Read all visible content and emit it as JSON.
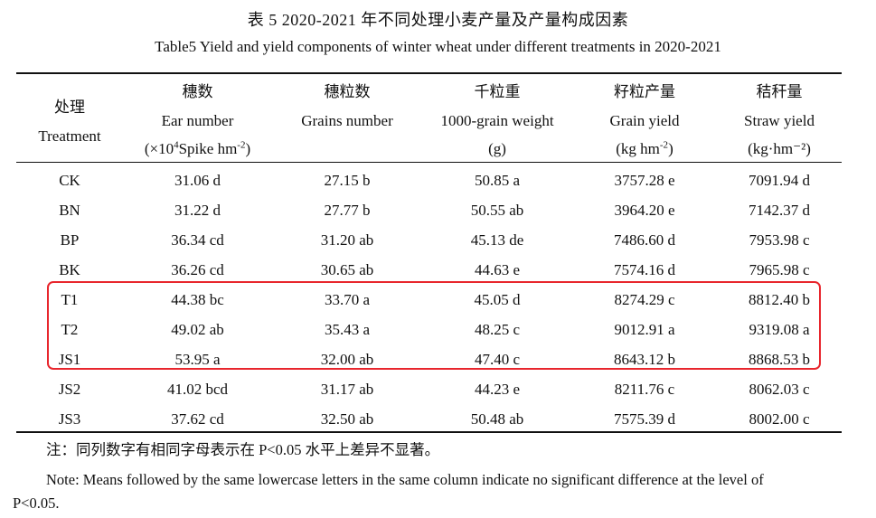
{
  "caption": {
    "cn": "表 5 2020-2021 年不同处理小麦产量及产量构成因素",
    "en": "Table5 Yield and yield components of winter wheat under different treatments in 2020-2021"
  },
  "table": {
    "headers": [
      {
        "cn": "处理",
        "en": "Treatment",
        "unit": ""
      },
      {
        "cn": "穗数",
        "en": "Ear number",
        "unit_pre": "(×10",
        "unit_sup1": "4",
        "unit_mid": "Spike hm",
        "unit_sup2": "-2",
        "unit_post": ")"
      },
      {
        "cn": "穗粒数",
        "en": "Grains number",
        "unit": ""
      },
      {
        "cn": "千粒重",
        "en": "1000-grain weight",
        "unit": "(g)"
      },
      {
        "cn": "籽粒产量",
        "en": "Grain yield",
        "unit_pre": "(kg hm",
        "unit_sup": "-2",
        "unit_post": ")"
      },
      {
        "cn": "秸秆量",
        "en": "Straw yield",
        "unit": "(kg·hm⁻²)"
      }
    ],
    "rows": [
      [
        "CK",
        "31.06 d",
        "27.15 b",
        "50.85 a",
        "3757.28 e",
        "7091.94 d"
      ],
      [
        "BN",
        "31.22 d",
        "27.77 b",
        "50.55 ab",
        "3964.20 e",
        "7142.37 d"
      ],
      [
        "BP",
        "36.34 cd",
        "31.20 ab",
        "45.13 de",
        "7486.60 d",
        "7953.98 c"
      ],
      [
        "BK",
        "36.26 cd",
        "30.65 ab",
        "44.63 e",
        "7574.16 d",
        "7965.98 c"
      ],
      [
        "T1",
        "44.38 bc",
        "33.70 a",
        "45.05 d",
        "8274.29 c",
        "8812.40 b"
      ],
      [
        "T2",
        "49.02 ab",
        "35.43 a",
        "48.25 c",
        "9012.91 a",
        "9319.08 a"
      ],
      [
        "JS1",
        "53.95 a",
        "32.00 ab",
        "47.40 c",
        "8643.12 b",
        "8868.53 b"
      ],
      [
        "JS2",
        "41.02 bcd",
        "31.17 ab",
        "44.23 e",
        "8211.76 c",
        "8062.03 c"
      ],
      [
        "JS3",
        "37.62 cd",
        "32.50 ab",
        "50.48 ab",
        "7575.39 d",
        "8002.00 c"
      ]
    ]
  },
  "highlight": {
    "color": "#e8262d",
    "rows": [
      "T1",
      "T2",
      "JS1"
    ]
  },
  "notes": {
    "cn": "注：同列数字有相同字母表示在 P<0.05 水平上差异不显著。",
    "en_line1": "Note: Means followed by the same lowercase letters in the same column indicate no significant difference at the level of",
    "en_line2": "P<0.05."
  }
}
